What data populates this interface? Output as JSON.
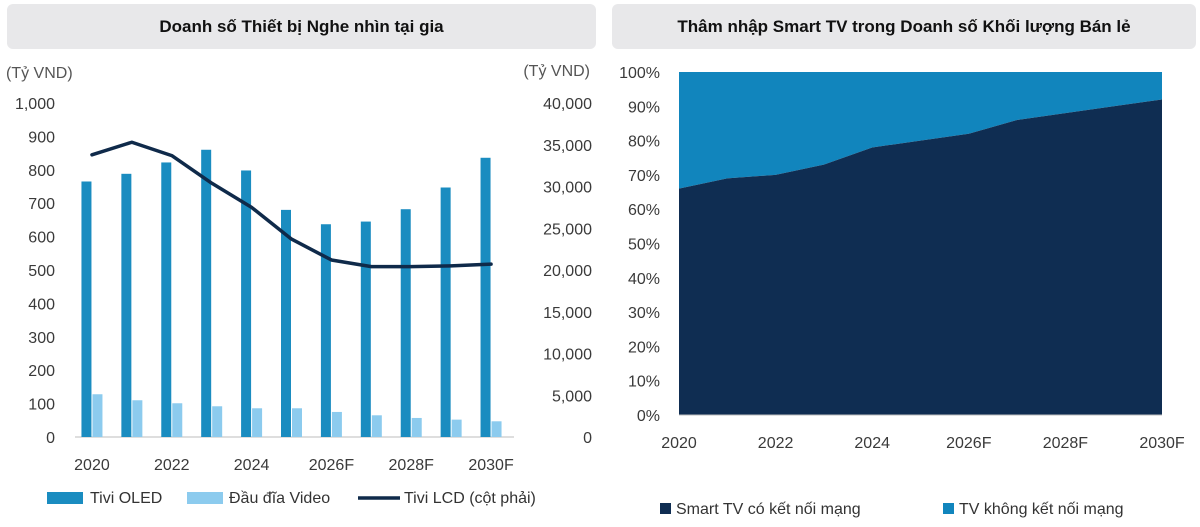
{
  "chart_data": [
    {
      "type": "bar",
      "title": "Doanh số Thiết bị Nghe nhìn tại gia",
      "y_left_unit": "(Tỷ VND)",
      "y_right_unit": "(Tỷ VND)",
      "ylim_left": [
        0,
        1000
      ],
      "ylim_right": [
        0,
        40000
      ],
      "y_left_ticks": [
        "1,000",
        "900",
        "800",
        "700",
        "600",
        "500",
        "400",
        "300",
        "200",
        "100",
        "0"
      ],
      "y_right_ticks": [
        "40,000",
        "35,000",
        "30,000",
        "25,000",
        "20,000",
        "15,000",
        "10,000",
        "5,000",
        "0"
      ],
      "categories": [
        "2020",
        "2021",
        "2022",
        "2023",
        "2024",
        "2025",
        "2026F",
        "2027F",
        "2028F",
        "2029F",
        "2030F"
      ],
      "x_tick_labels": [
        "2020",
        "2022",
        "2024",
        "2026F",
        "2028F",
        "2030F"
      ],
      "series": [
        {
          "name": "Tivi OLED",
          "axis": "left",
          "kind": "bar",
          "color": "#1a8cc0",
          "values": [
            765,
            788,
            822,
            860,
            798,
            680,
            637,
            645,
            682,
            747,
            836
          ]
        },
        {
          "name": "Đầu đĩa Video",
          "axis": "left",
          "kind": "bar",
          "color": "#8ccbee",
          "values": [
            128,
            110,
            101,
            92,
            86,
            86,
            75,
            65,
            57,
            52,
            47
          ]
        },
        {
          "name": "Tivi LCD (cột phải)",
          "axis": "right",
          "kind": "line",
          "color": "#0f2a4a",
          "values": [
            33800,
            35300,
            33700,
            30400,
            27500,
            23700,
            21200,
            20400,
            20400,
            20500,
            20700
          ]
        }
      ],
      "legend_position": "bottom"
    },
    {
      "type": "area",
      "title": "Thâm nhập Smart TV trong Doanh số Khối lượng Bán lẻ",
      "ylim": [
        0,
        100
      ],
      "y_ticks": [
        "100%",
        "90%",
        "80%",
        "70%",
        "60%",
        "50%",
        "40%",
        "30%",
        "20%",
        "10%",
        "0%"
      ],
      "x": [
        "2020",
        "2021",
        "2022",
        "2023",
        "2024",
        "2025",
        "2026F",
        "2027F",
        "2028F",
        "2029F",
        "2030F"
      ],
      "x_tick_labels": [
        "2020",
        "2022",
        "2024",
        "2026F",
        "2028F",
        "2030F"
      ],
      "stacked": true,
      "series": [
        {
          "name": "Smart TV có kết nối mạng",
          "color": "#0f2d52",
          "values": [
            66,
            69,
            70,
            73,
            78,
            80,
            82,
            86,
            88,
            90,
            92
          ]
        },
        {
          "name": "TV không kết nối mạng",
          "color": "#1185bd",
          "values": [
            34,
            31,
            30,
            27,
            22,
            20,
            18,
            14,
            12,
            10,
            8
          ]
        }
      ],
      "legend_position": "bottom"
    }
  ]
}
